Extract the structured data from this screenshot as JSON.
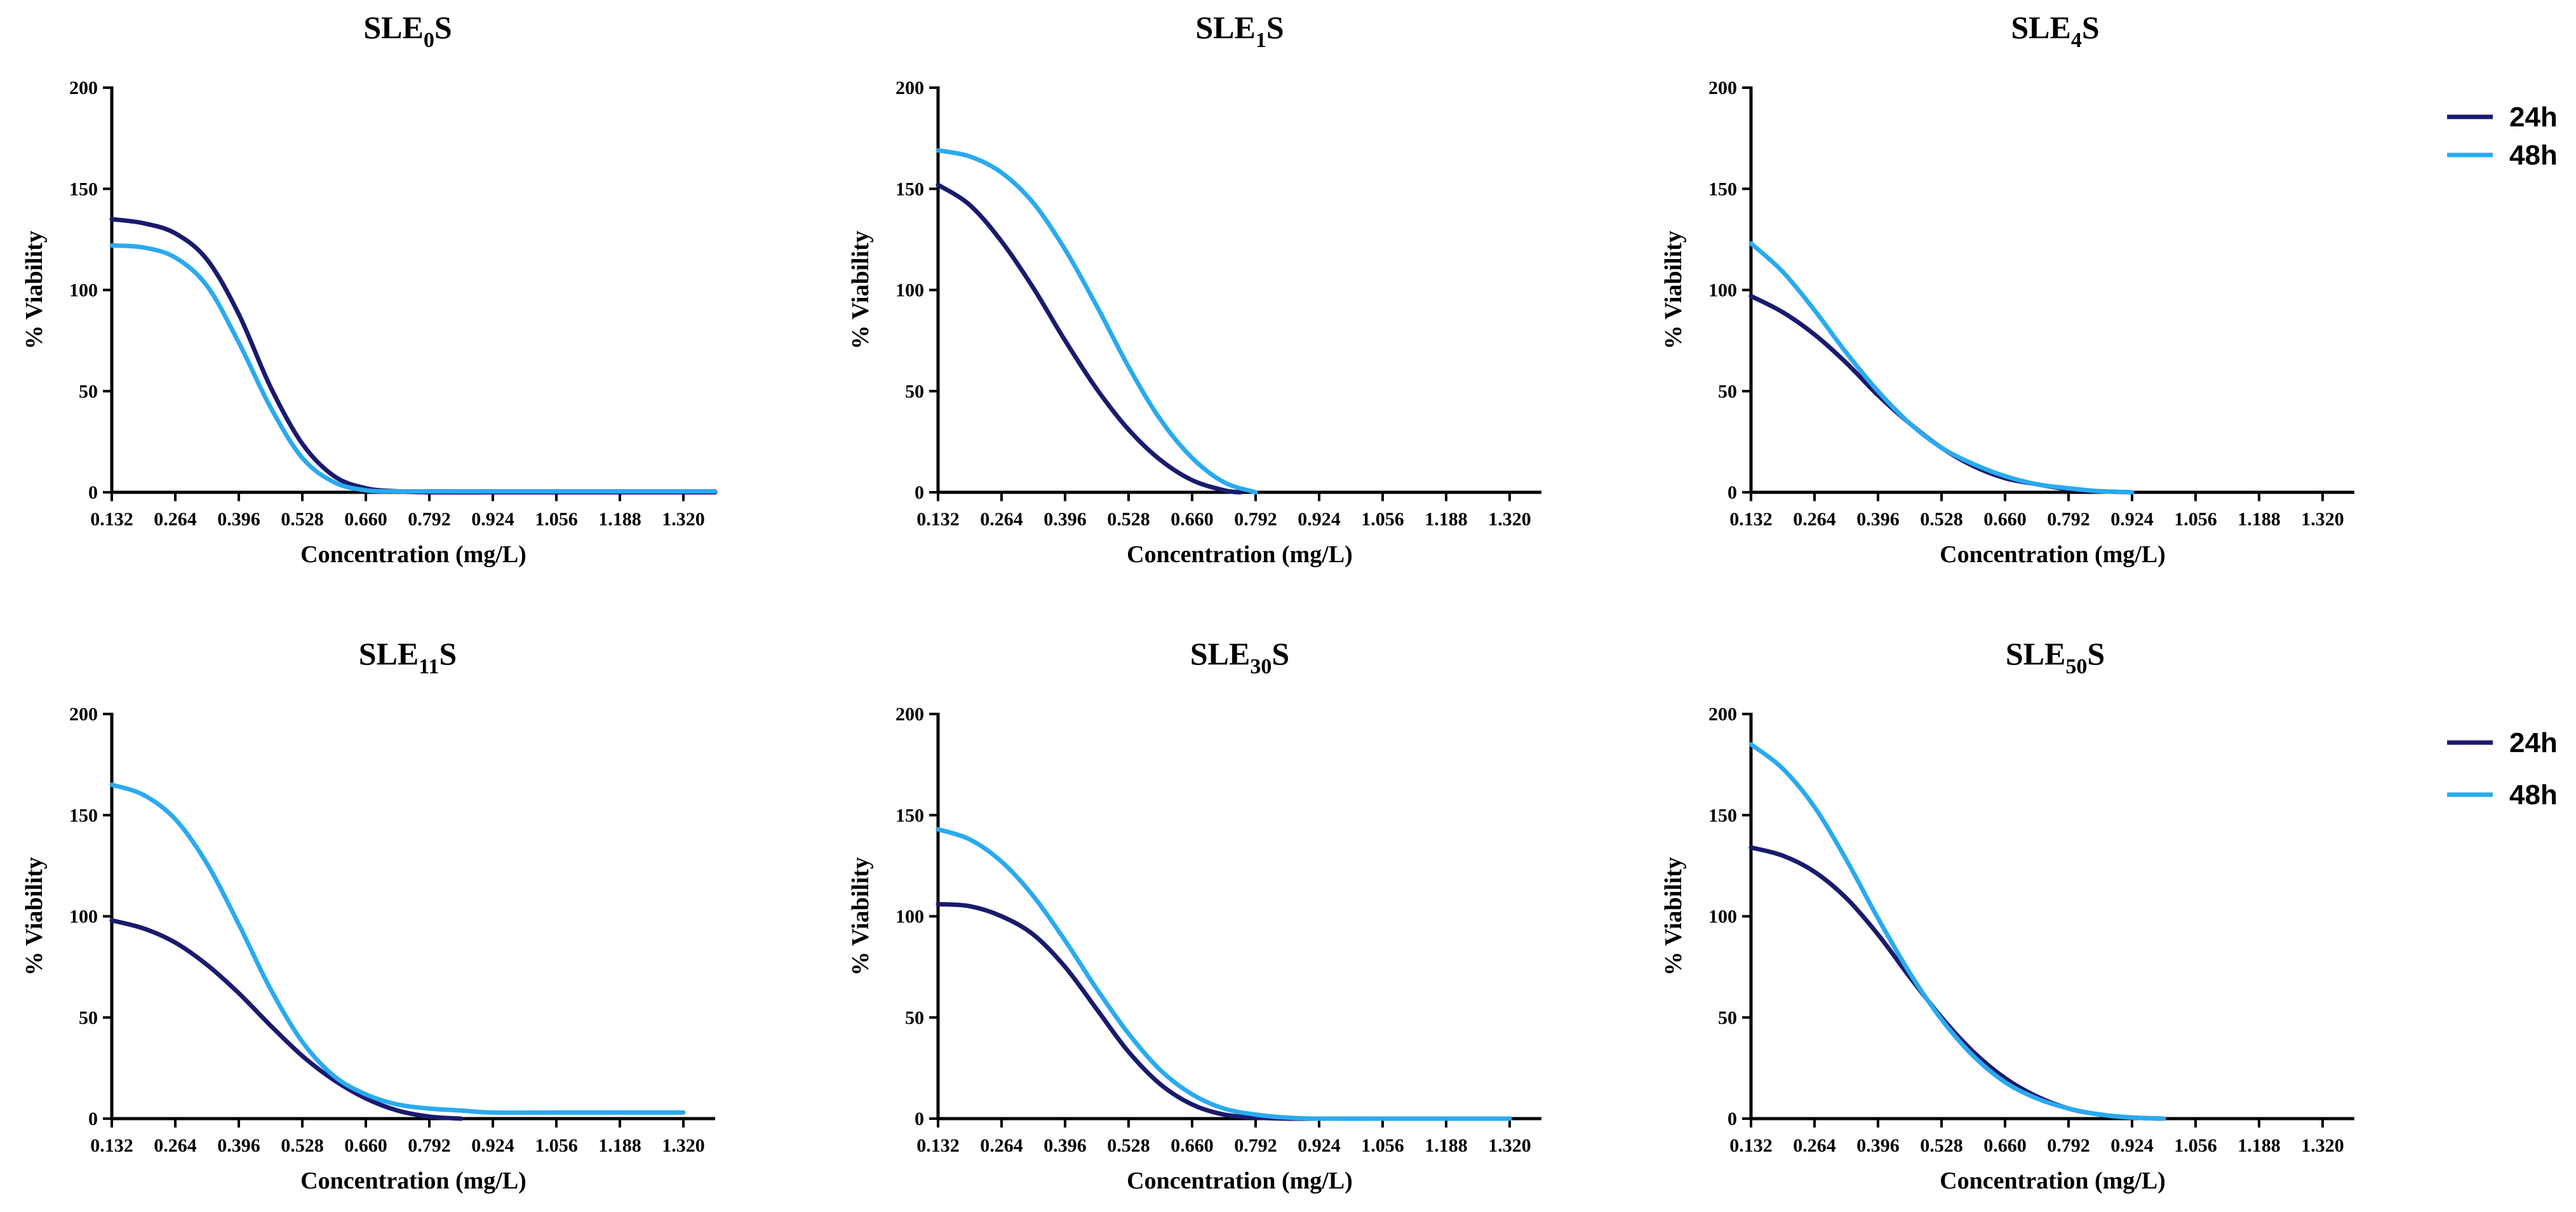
{
  "legend": {
    "items": [
      {
        "label": "24h",
        "color": "#1a1a6e"
      },
      {
        "label": "48h",
        "color": "#29aaf0"
      }
    ]
  },
  "chart_data": [
    {
      "type": "line",
      "title": "SLE0S",
      "title_main": "SLE",
      "title_sub": "0",
      "title_suffix": "S",
      "xlabel": "Concentration (mg/L)",
      "ylabel": "% Viability",
      "xlim": [
        0.132,
        1.386
      ],
      "ylim": [
        0,
        200
      ],
      "xticks": [
        "0.132",
        "0.264",
        "0.396",
        "0.528",
        "0.660",
        "0.792",
        "0.924",
        "1.056",
        "1.188",
        "1.320"
      ],
      "yticks": [
        "0",
        "50",
        "100",
        "150",
        "200"
      ],
      "series": [
        {
          "name": "24h",
          "color": "#1a1a6e",
          "x": [
            0.132,
            0.198,
            0.264,
            0.33,
            0.396,
            0.462,
            0.528,
            0.594,
            0.66,
            0.726,
            0.792,
            0.924,
            1.056,
            1.188,
            1.386
          ],
          "y": [
            135,
            133,
            128,
            115,
            88,
            52,
            24,
            8,
            2,
            0.5,
            0,
            0,
            0,
            0,
            0
          ]
        },
        {
          "name": "48h",
          "color": "#29aaf0",
          "x": [
            0.132,
            0.198,
            0.264,
            0.33,
            0.396,
            0.462,
            0.528,
            0.594,
            0.66,
            0.726,
            0.792,
            0.924,
            1.056,
            1.188,
            1.386
          ],
          "y": [
            122,
            121,
            116,
            102,
            74,
            42,
            17,
            5,
            1,
            0.5,
            0.5,
            0.5,
            0.5,
            0.5,
            0.5
          ]
        }
      ]
    },
    {
      "type": "line",
      "title": "SLE1S",
      "title_main": "SLE",
      "title_sub": "1",
      "title_suffix": "S",
      "xlabel": "Concentration (mg/L)",
      "ylabel": "% Viability",
      "xlim": [
        0.132,
        1.386
      ],
      "ylim": [
        0,
        200
      ],
      "xticks": [
        "0.132",
        "0.264",
        "0.396",
        "0.528",
        "0.660",
        "0.792",
        "0.924",
        "1.056",
        "1.188",
        "1.320"
      ],
      "yticks": [
        "0",
        "50",
        "100",
        "150",
        "200"
      ],
      "series": [
        {
          "name": "24h",
          "color": "#1a1a6e",
          "x": [
            0.132,
            0.198,
            0.264,
            0.33,
            0.396,
            0.462,
            0.528,
            0.594,
            0.66,
            0.726,
            0.76
          ],
          "y": [
            152,
            142,
            124,
            101,
            75,
            51,
            31,
            16,
            6,
            1,
            0
          ]
        },
        {
          "name": "48h",
          "color": "#29aaf0",
          "x": [
            0.132,
            0.198,
            0.264,
            0.33,
            0.396,
            0.462,
            0.528,
            0.594,
            0.66,
            0.726,
            0.792
          ],
          "y": [
            169,
            166,
            158,
            143,
            120,
            92,
            62,
            36,
            17,
            5,
            0
          ]
        }
      ]
    },
    {
      "type": "line",
      "title": "SLE4S",
      "title_main": "SLE",
      "title_sub": "4",
      "title_suffix": "S",
      "xlabel": "Concentration (mg/L)",
      "ylabel": "% Viability",
      "xlim": [
        0.132,
        1.386
      ],
      "ylim": [
        0,
        200
      ],
      "xticks": [
        "0.132",
        "0.264",
        "0.396",
        "0.528",
        "0.660",
        "0.792",
        "0.924",
        "1.056",
        "1.188",
        "1.320"
      ],
      "yticks": [
        "0",
        "50",
        "100",
        "150",
        "200"
      ],
      "series": [
        {
          "name": "24h",
          "color": "#1a1a6e",
          "x": [
            0.132,
            0.198,
            0.264,
            0.33,
            0.396,
            0.462,
            0.528,
            0.594,
            0.66,
            0.726,
            0.792,
            0.858,
            0.924
          ],
          "y": [
            97,
            89,
            78,
            64,
            48,
            34,
            22,
            13,
            7,
            4,
            1.5,
            0.5,
            0
          ]
        },
        {
          "name": "48h",
          "color": "#29aaf0",
          "x": [
            0.132,
            0.198,
            0.264,
            0.33,
            0.396,
            0.462,
            0.528,
            0.594,
            0.66,
            0.726,
            0.792,
            0.858,
            0.924
          ],
          "y": [
            123,
            109,
            90,
            69,
            50,
            34,
            22,
            14,
            8,
            4,
            2,
            0.5,
            0
          ]
        }
      ]
    },
    {
      "type": "line",
      "title": "SLE11S",
      "title_main": "SLE",
      "title_sub": "11",
      "title_suffix": "S",
      "xlabel": "Concentration (mg/L)",
      "ylabel": "% Viability",
      "xlim": [
        0.132,
        1.386
      ],
      "ylim": [
        0,
        200
      ],
      "xticks": [
        "0.132",
        "0.264",
        "0.396",
        "0.528",
        "0.660",
        "0.792",
        "0.924",
        "1.056",
        "1.188",
        "1.320"
      ],
      "yticks": [
        "0",
        "50",
        "100",
        "150",
        "200"
      ],
      "series": [
        {
          "name": "24h",
          "color": "#1a1a6e",
          "x": [
            0.132,
            0.198,
            0.264,
            0.33,
            0.396,
            0.462,
            0.528,
            0.594,
            0.66,
            0.726,
            0.792,
            0.858
          ],
          "y": [
            98,
            94,
            87,
            76,
            62,
            46,
            31,
            19,
            10,
            4,
            1,
            0
          ]
        },
        {
          "name": "48h",
          "color": "#29aaf0",
          "x": [
            0.132,
            0.198,
            0.264,
            0.33,
            0.396,
            0.462,
            0.528,
            0.594,
            0.66,
            0.726,
            0.792,
            0.858,
            0.924,
            1.056,
            1.188,
            1.32
          ],
          "y": [
            165,
            160,
            148,
            126,
            96,
            64,
            38,
            21,
            12,
            7,
            5,
            4,
            3,
            3,
            3,
            3
          ]
        }
      ]
    },
    {
      "type": "line",
      "title": "SLE30S",
      "title_main": "SLE",
      "title_sub": "30",
      "title_suffix": "S",
      "xlabel": "Concentration (mg/L)",
      "ylabel": "% Viability",
      "xlim": [
        0.132,
        1.386
      ],
      "ylim": [
        0,
        200
      ],
      "xticks": [
        "0.132",
        "0.264",
        "0.396",
        "0.528",
        "0.660",
        "0.792",
        "0.924",
        "1.056",
        "1.188",
        "1.320"
      ],
      "yticks": [
        "0",
        "50",
        "100",
        "150",
        "200"
      ],
      "series": [
        {
          "name": "24h",
          "color": "#1a1a6e",
          "x": [
            0.132,
            0.198,
            0.264,
            0.33,
            0.396,
            0.462,
            0.528,
            0.594,
            0.66,
            0.726,
            0.792,
            0.858,
            0.924,
            1.056,
            1.188,
            1.32
          ],
          "y": [
            106,
            105,
            100,
            91,
            75,
            54,
            33,
            17,
            7,
            2,
            0.5,
            0,
            0,
            0,
            0,
            0
          ]
        },
        {
          "name": "48h",
          "color": "#29aaf0",
          "x": [
            0.132,
            0.198,
            0.264,
            0.33,
            0.396,
            0.462,
            0.528,
            0.594,
            0.66,
            0.726,
            0.792,
            0.858,
            0.924,
            1.056,
            1.188,
            1.32
          ],
          "y": [
            143,
            138,
            127,
            110,
            88,
            64,
            42,
            24,
            12,
            5,
            2,
            0.5,
            0,
            0,
            0,
            0
          ]
        }
      ]
    },
    {
      "type": "line",
      "title": "SLE50S",
      "title_main": "SLE",
      "title_sub": "50",
      "title_suffix": "S",
      "xlabel": "Concentration (mg/L)",
      "ylabel": "% Viability",
      "xlim": [
        0.132,
        1.386
      ],
      "ylim": [
        0,
        200
      ],
      "xticks": [
        "0.132",
        "0.264",
        "0.396",
        "0.528",
        "0.660",
        "0.792",
        "0.924",
        "1.056",
        "1.188",
        "1.320"
      ],
      "yticks": [
        "0",
        "50",
        "100",
        "150",
        "200"
      ],
      "series": [
        {
          "name": "24h",
          "color": "#1a1a6e",
          "x": [
            0.132,
            0.198,
            0.264,
            0.33,
            0.396,
            0.462,
            0.528,
            0.594,
            0.66,
            0.726,
            0.792,
            0.858,
            0.924,
            0.99
          ],
          "y": [
            134,
            130,
            122,
            109,
            91,
            70,
            50,
            33,
            20,
            11,
            5,
            2,
            0.5,
            0
          ]
        },
        {
          "name": "48h",
          "color": "#29aaf0",
          "x": [
            0.132,
            0.198,
            0.264,
            0.33,
            0.396,
            0.462,
            0.528,
            0.594,
            0.66,
            0.726,
            0.792,
            0.858,
            0.924,
            0.99
          ],
          "y": [
            185,
            173,
            154,
            128,
            99,
            72,
            49,
            31,
            18,
            10,
            5,
            2,
            0.5,
            0
          ]
        }
      ]
    }
  ]
}
